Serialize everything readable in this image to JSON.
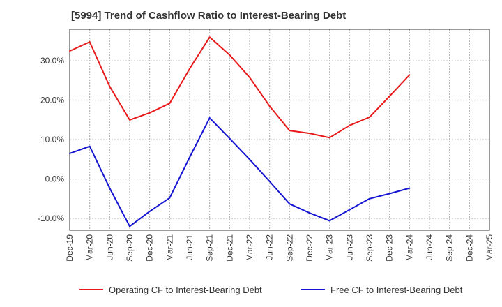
{
  "chart_data": {
    "type": "line",
    "title": "[5994]  Trend of Cashflow Ratio to Interest-Bearing Debt",
    "xlabel": "",
    "ylabel": "",
    "ylim": [
      -13,
      38
    ],
    "y_ticks": [
      -10,
      0,
      10,
      20,
      30
    ],
    "y_tick_labels": [
      "-10.0%",
      "0.0%",
      "10.0%",
      "20.0%",
      "30.0%"
    ],
    "categories": [
      "Dec-19",
      "Mar-20",
      "Jun-20",
      "Sep-20",
      "Dec-20",
      "Mar-21",
      "Jun-21",
      "Sep-21",
      "Dec-21",
      "Mar-22",
      "Jun-22",
      "Sep-22",
      "Dec-22",
      "Mar-23",
      "Jun-23",
      "Sep-23",
      "Dec-23",
      "Mar-24",
      "Jun-24",
      "Sep-24",
      "Dec-24",
      "Mar-25"
    ],
    "grid": true,
    "legend_position": "bottom",
    "series": [
      {
        "name": "Operating CF to Interest-Bearing Debt",
        "color": "#e8191a",
        "values": [
          32.5,
          34.8,
          23.5,
          15.0,
          16.8,
          19.2,
          28.0,
          36.0,
          31.5,
          25.8,
          18.5,
          12.3,
          11.6,
          10.5,
          13.6,
          15.7,
          21.0,
          26.4,
          null,
          null,
          null,
          null
        ]
      },
      {
        "name": "Free CF to Interest-Bearing Debt",
        "color": "#1414d2",
        "values": [
          6.5,
          8.3,
          -2.3,
          -12.0,
          -8.2,
          -4.8,
          5.5,
          15.5,
          10.3,
          5.0,
          -0.6,
          -6.3,
          -8.6,
          -10.6,
          -7.8,
          -5.0,
          -3.7,
          -2.3,
          null,
          null,
          null,
          null
        ]
      }
    ]
  }
}
